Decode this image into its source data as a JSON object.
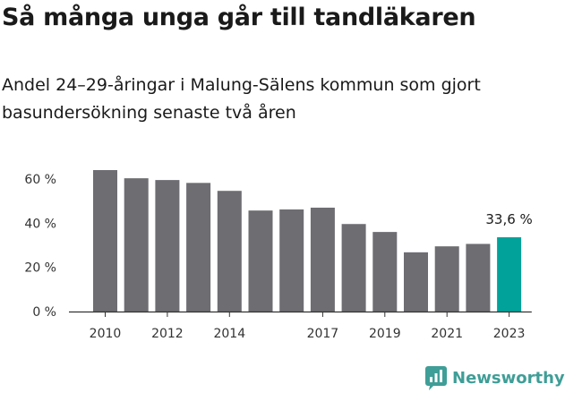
{
  "title": "Så många unga går till tandläkaren",
  "subtitle": "Andel 24–29-åringar i Malung-Sälens kommun som gjort basundersökning senaste två åren",
  "brand": "Newsworthy",
  "colors": {
    "bar": "#6d6d72",
    "highlight": "#00a29a",
    "axis": "#333333",
    "brand": "#3f9e97"
  },
  "chart_data": {
    "type": "bar",
    "title": "Så många unga går till tandläkaren",
    "subtitle": "Andel 24–29-åringar i Malung-Sälens kommun som gjort basundersökning senaste två åren",
    "xlabel": "",
    "ylabel": "",
    "categories": [
      "2010",
      "2011",
      "2012",
      "2013",
      "2014",
      "2015",
      "2016",
      "2017",
      "2018",
      "2019",
      "2020",
      "2021",
      "2022",
      "2023"
    ],
    "x_tick_labels": [
      "2010",
      "2012",
      "2014",
      "2017",
      "2019",
      "2021",
      "2023"
    ],
    "values": [
      64.0,
      60.3,
      59.5,
      58.2,
      54.6,
      45.7,
      46.2,
      47.0,
      39.6,
      36.0,
      26.8,
      29.5,
      30.6,
      33.6
    ],
    "highlight_index": 13,
    "data_labels": [
      {
        "index": 13,
        "text": "33,6 %"
      }
    ],
    "y_ticks": [
      0,
      20,
      40,
      60
    ],
    "y_tick_labels": [
      "0 %",
      "20 %",
      "40 %",
      "60 %"
    ],
    "ylim": [
      0,
      64
    ],
    "grid": false,
    "legend": "none"
  }
}
